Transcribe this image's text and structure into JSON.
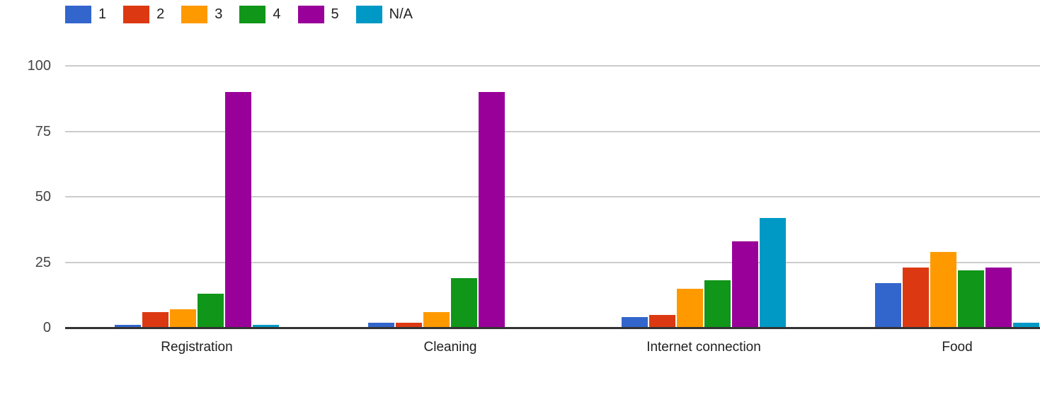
{
  "chart_data": {
    "type": "bar",
    "title": "",
    "xlabel": "",
    "ylabel": "",
    "categories": [
      "Registration",
      "Cleaning",
      "Internet connection",
      "Food"
    ],
    "series": [
      {
        "name": "1",
        "color": "#3366cc",
        "values": [
          1,
          2,
          4,
          17
        ]
      },
      {
        "name": "2",
        "color": "#dc3912",
        "values": [
          6,
          2,
          5,
          23
        ]
      },
      {
        "name": "3",
        "color": "#ff9900",
        "values": [
          7,
          6,
          15,
          29
        ]
      },
      {
        "name": "4",
        "color": "#109618",
        "values": [
          13,
          19,
          18,
          22
        ]
      },
      {
        "name": "5",
        "color": "#990099",
        "values": [
          90,
          90,
          33,
          23
        ]
      },
      {
        "name": "N/A",
        "color": "#0099c6",
        "values": [
          1,
          0,
          42,
          2
        ]
      }
    ],
    "ylim": [
      0,
      100
    ],
    "yticks": [
      0,
      25,
      50,
      75,
      100
    ],
    "grid": true,
    "legend_position": "top-left",
    "gridline_color": "#cccccc",
    "baseline_color": "#333333",
    "label_color": "#212121",
    "tick_label_color": "#444444"
  }
}
